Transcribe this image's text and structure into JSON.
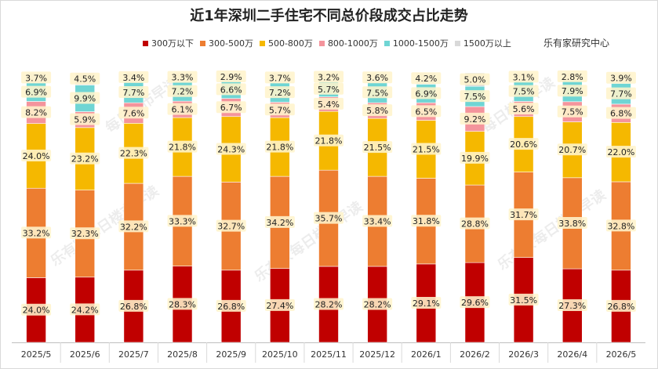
{
  "chart_data": {
    "type": "bar",
    "stacked": true,
    "normalized": true,
    "title": "近1年深圳二手住宅不同总价段成交占比走势",
    "source_note": "乐有家研究中心",
    "watermark": "乐有家 每日楼市早读",
    "categories": [
      "2025/5",
      "2025/6",
      "2025/7",
      "2025/8",
      "2025/9",
      "2025/10",
      "2025/11",
      "2025/12",
      "2026/1",
      "2026/2",
      "2026/3",
      "2026/4",
      "2026/5"
    ],
    "series": [
      {
        "name": "300万以下",
        "color": "#c00000",
        "values": [
          24.0,
          24.2,
          26.8,
          28.3,
          26.8,
          27.4,
          28.2,
          28.2,
          29.1,
          29.6,
          31.5,
          27.3,
          26.8
        ],
        "labels": [
          "24.0%",
          "24.2%",
          "26.8%",
          "28.3%",
          "26.8%",
          "27.4%",
          "28.2%",
          "28.2%",
          "29.1%",
          "29.6%",
          "31.5%",
          "27.3%",
          "26.8%"
        ]
      },
      {
        "name": "300-500万",
        "color": "#ed7d31",
        "values": [
          33.2,
          32.3,
          32.2,
          33.3,
          32.7,
          34.2,
          35.7,
          33.4,
          31.8,
          28.8,
          31.7,
          33.8,
          32.8
        ],
        "labels": [
          "33.2%",
          "32.3%",
          "32.2%",
          "33.3%",
          "32.7%",
          "34.2%",
          "35.7%",
          "33.4%",
          "31.8%",
          "28.8%",
          "31.7%",
          "33.8%",
          "32.8%"
        ]
      },
      {
        "name": "500-800万",
        "color": "#f5b800",
        "values": [
          24.0,
          23.2,
          22.3,
          21.8,
          24.3,
          21.8,
          21.8,
          21.5,
          21.5,
          19.9,
          20.6,
          20.7,
          22.0
        ],
        "labels": [
          "24.0%",
          "23.2%",
          "22.3%",
          "21.8%",
          "24.3%",
          "21.8%",
          "21.8%",
          "21.5%",
          "21.5%",
          "19.9%",
          "20.6%",
          "20.7%",
          "22.0%"
        ]
      },
      {
        "name": "800-1000万",
        "color": "#f4949c",
        "values": [
          8.2,
          5.9,
          7.6,
          6.1,
          6.7,
          5.7,
          5.4,
          5.8,
          6.5,
          9.2,
          5.6,
          7.5,
          6.8
        ],
        "labels": [
          "8.2%",
          "5.9%",
          "7.6%",
          "6.1%",
          "6.7%",
          "5.7%",
          "5.4%",
          "5.8%",
          "6.5%",
          "9.2%",
          "5.6%",
          "7.5%",
          "6.8%"
        ]
      },
      {
        "name": "1000-1500万",
        "color": "#6fd5d4",
        "values": [
          6.9,
          9.9,
          7.7,
          7.2,
          6.6,
          7.2,
          5.7,
          7.5,
          6.9,
          7.5,
          7.5,
          7.9,
          7.7
        ],
        "labels": [
          "6.9%",
          "9.9%",
          "7.7%",
          "7.2%",
          "6.6%",
          "7.2%",
          "5.7%",
          "7.5%",
          "6.9%",
          "7.5%",
          "7.5%",
          "7.9%",
          "7.7%"
        ]
      },
      {
        "name": "1500万以上",
        "color": "#d9d9d9",
        "values": [
          3.7,
          4.5,
          3.4,
          3.3,
          2.9,
          3.7,
          3.2,
          3.6,
          4.2,
          5.0,
          3.1,
          2.8,
          3.9
        ],
        "labels": [
          "3.7%",
          "4.5%",
          "3.4%",
          "3.3%",
          "2.9%",
          "3.7%",
          "3.2%",
          "3.6%",
          "4.2%",
          "5.0%",
          "3.1%",
          "2.8%",
          "3.9%"
        ]
      }
    ]
  }
}
